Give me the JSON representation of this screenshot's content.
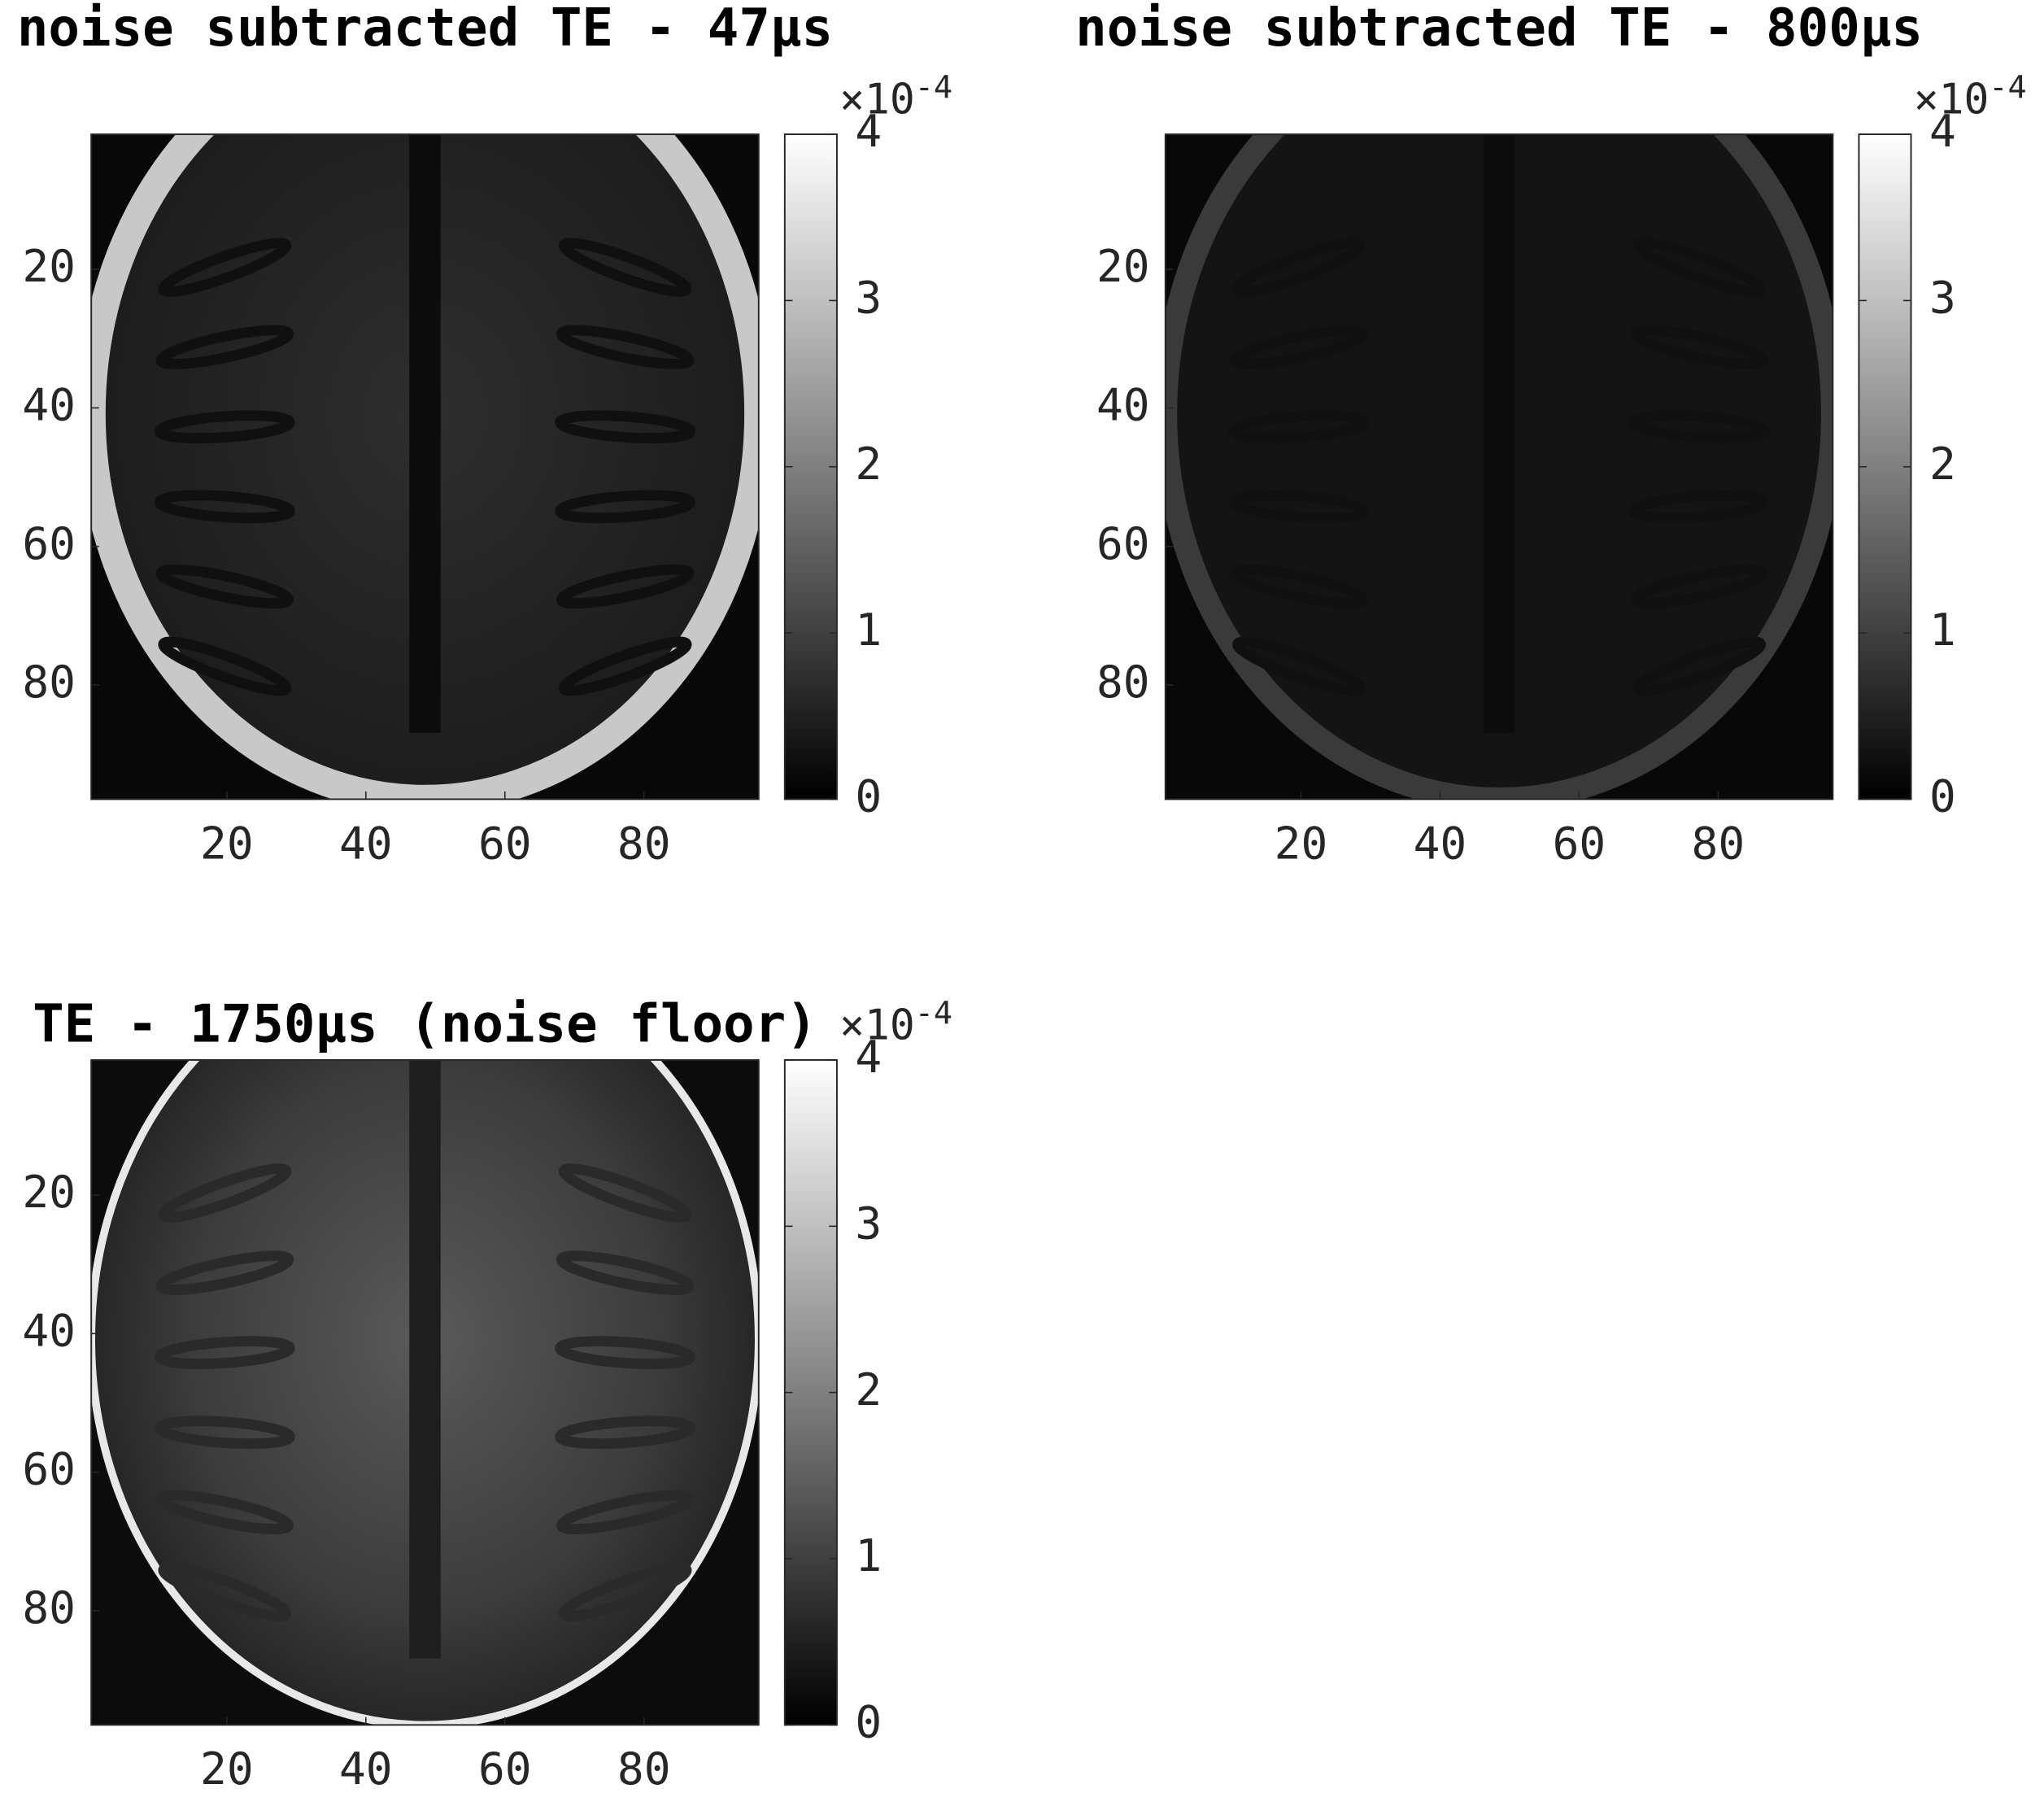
{
  "chart_data": [
    {
      "type": "heatmap",
      "title": "noise subtracted TE - 47µs",
      "xlim": [
        0.5,
        96.5
      ],
      "ylim": [
        0.5,
        96.5
      ],
      "y_reversed": true,
      "xticks": [
        20,
        40,
        60,
        80
      ],
      "yticks": [
        20,
        40,
        60,
        80
      ],
      "colormap": "gray",
      "colorbar": {
        "clim": [
          0,
          0.0004
        ],
        "ticks": [
          0,
          {
            "value": 0.0001,
            "label": "1"
          },
          {
            "value": 0.0002,
            "label": "2"
          },
          {
            "value": 0.0003,
            "label": "3"
          },
          {
            "value": 0.0004,
            "label": "4"
          }
        ],
        "multiplier": "×10",
        "exponent": "-4"
      }
    },
    {
      "type": "heatmap",
      "title": "noise subtracted TE - 800µs",
      "xlim": [
        0.5,
        96.5
      ],
      "ylim": [
        0.5,
        96.5
      ],
      "y_reversed": true,
      "xticks": [
        20,
        40,
        60,
        80
      ],
      "yticks": [
        20,
        40,
        60,
        80
      ],
      "colormap": "gray",
      "colorbar": {
        "clim": [
          0,
          0.0004
        ],
        "ticks": [
          0,
          {
            "value": 0.0001,
            "label": "1"
          },
          {
            "value": 0.0002,
            "label": "2"
          },
          {
            "value": 0.0003,
            "label": "3"
          },
          {
            "value": 0.0004,
            "label": "4"
          }
        ],
        "multiplier": "×10",
        "exponent": "-4"
      }
    },
    {
      "type": "heatmap",
      "title": "TE - 1750µs (noise floor)",
      "xlim": [
        0.5,
        96.5
      ],
      "ylim": [
        0.5,
        96.5
      ],
      "y_reversed": true,
      "xticks": [
        20,
        40,
        60,
        80
      ],
      "yticks": [
        20,
        40,
        60,
        80
      ],
      "colormap": "gray",
      "colorbar": {
        "clim": [
          0,
          0.0004
        ],
        "ticks": [
          0,
          {
            "value": 0.0001,
            "label": "1"
          },
          {
            "value": 0.0002,
            "label": "2"
          },
          {
            "value": 0.0003,
            "label": "3"
          },
          {
            "value": 0.0004,
            "label": "4"
          }
        ],
        "multiplier": "×10",
        "exponent": "-4"
      }
    }
  ]
}
